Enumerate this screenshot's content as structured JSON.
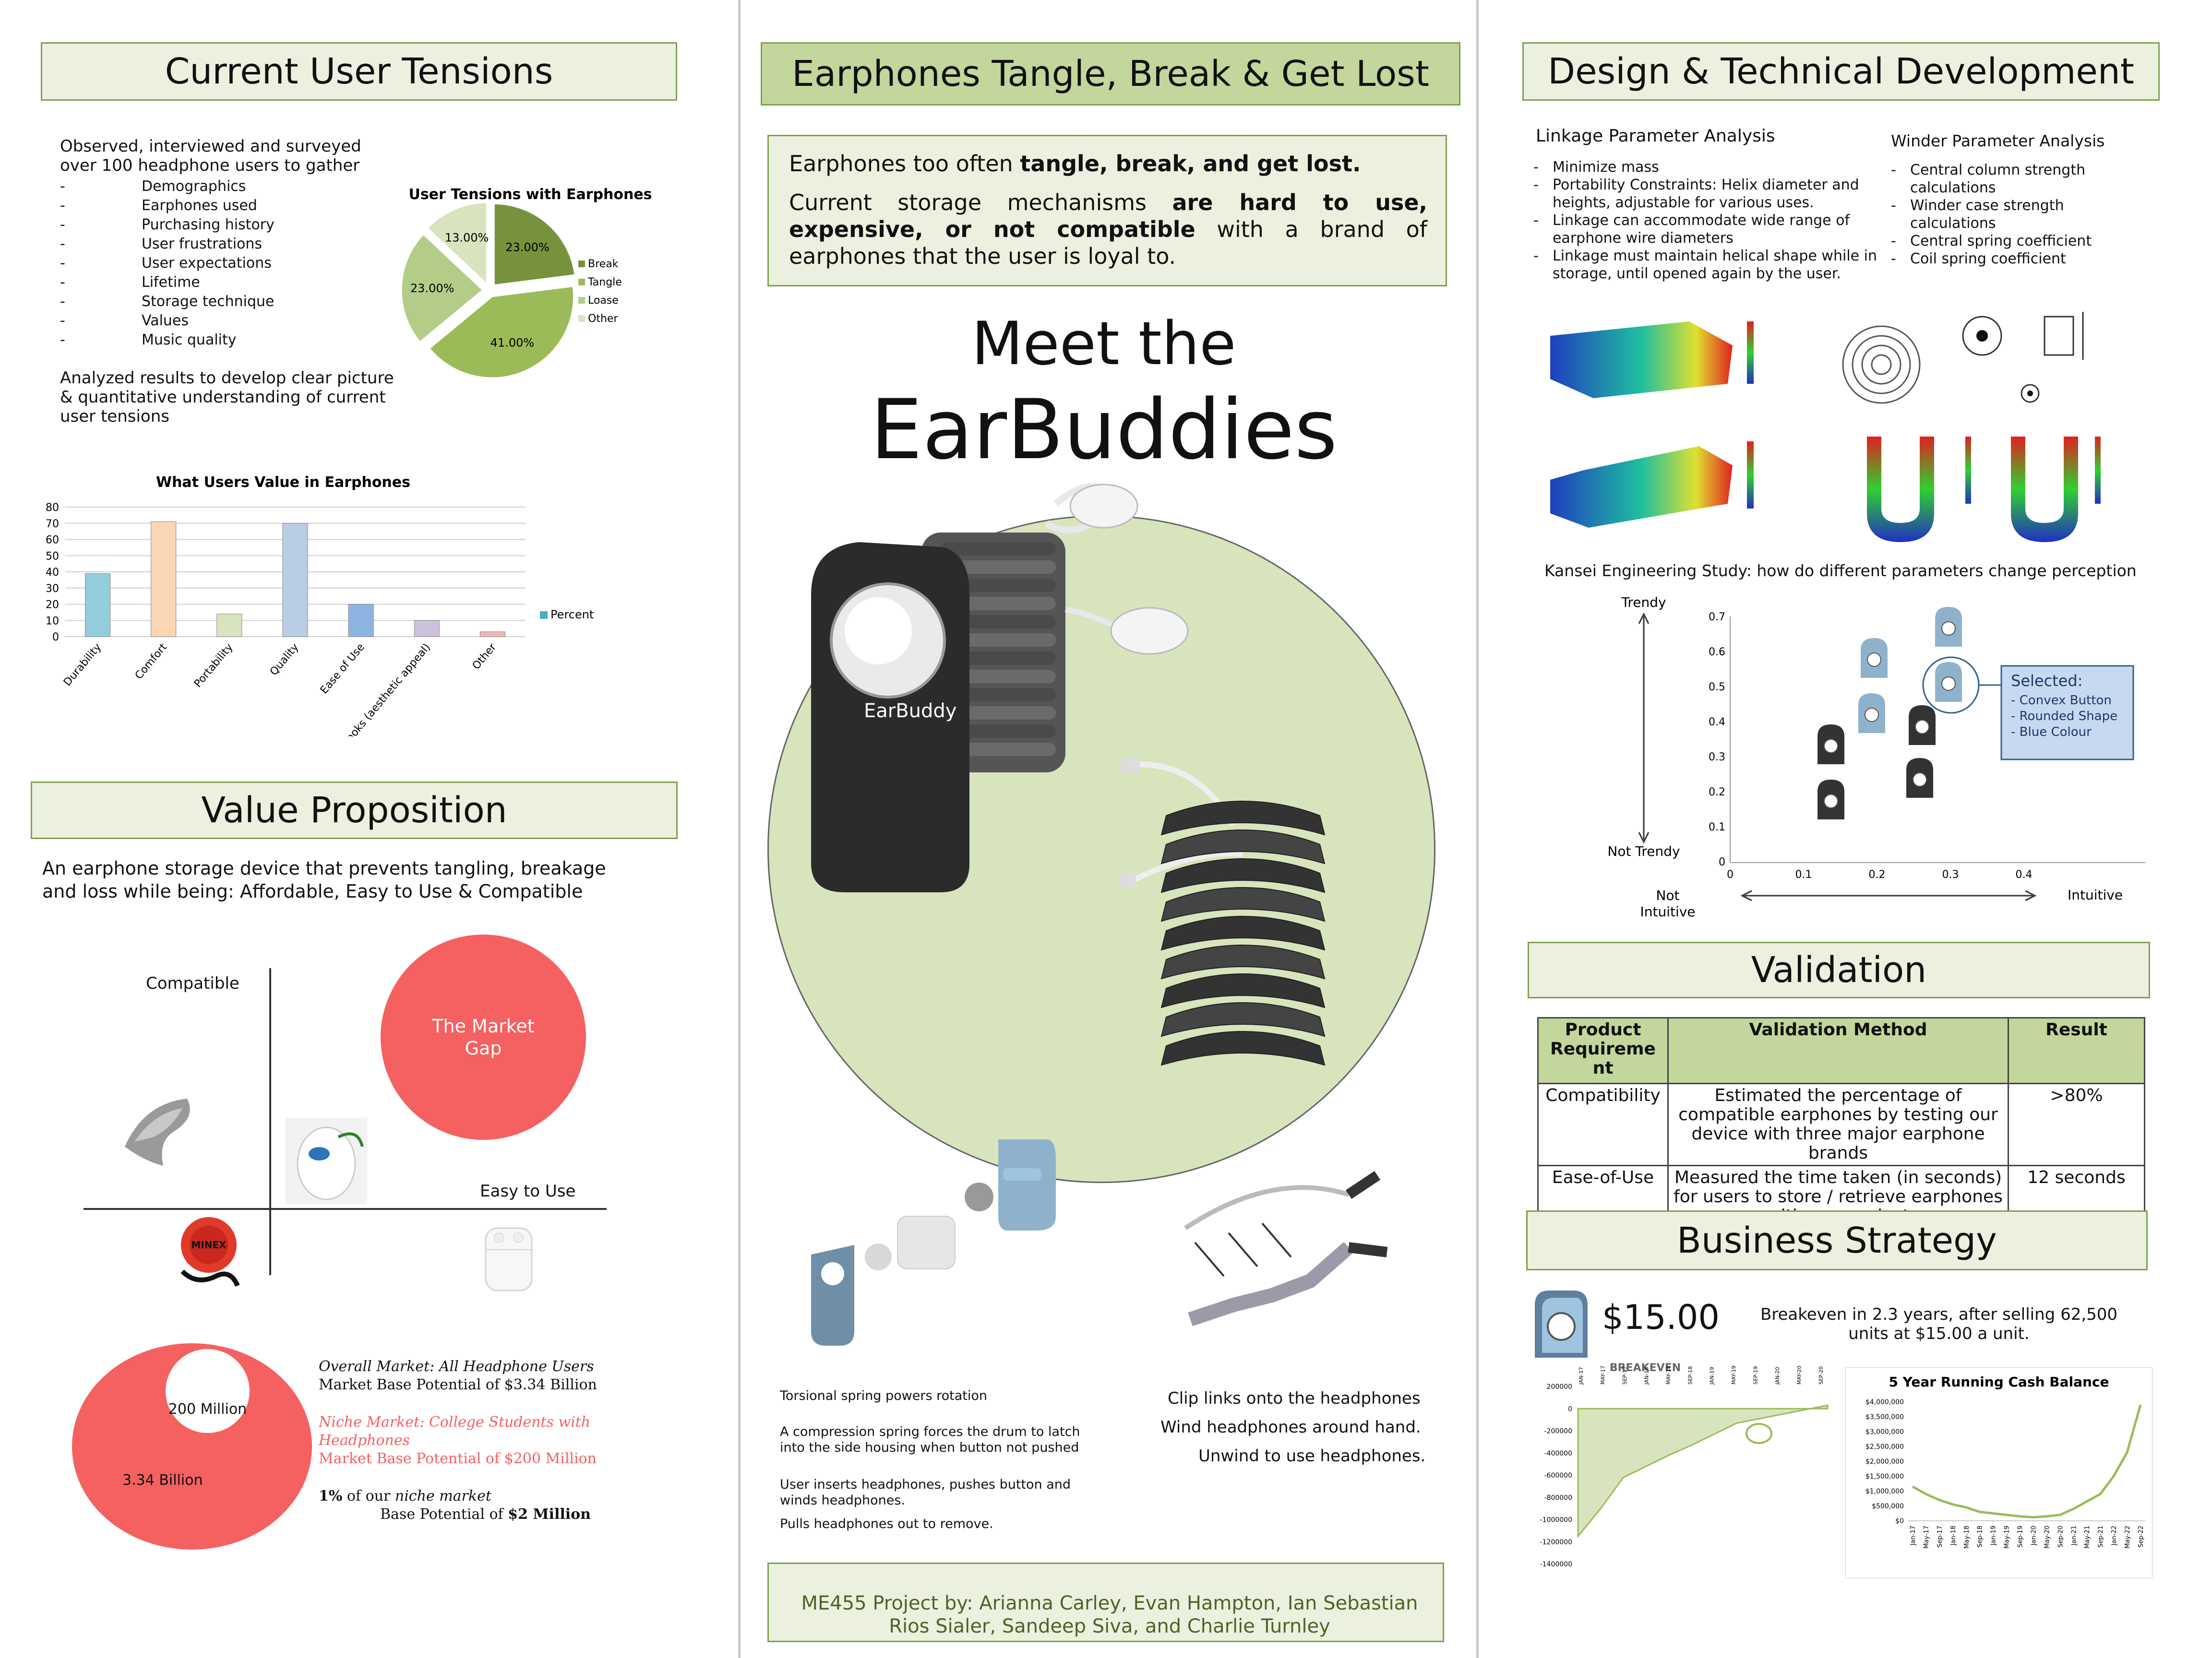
{
  "colors": {
    "accent_green": "#7f9f4f",
    "header_fill": "#ebf1de",
    "header_fill_dark": "#c3d69b",
    "market_red": "#f56060",
    "circle_green": "#d8e4bc"
  },
  "left": {
    "tensions_title": "Current User Tensions",
    "intro": "Observed, interviewed and surveyed over 100 headphone users to gather",
    "gather_items": [
      "Demographics",
      "Earphones used",
      "Purchasing history",
      "User frustrations",
      "User expectations",
      "Lifetime",
      "Storage technique",
      "Values",
      "Music quality"
    ],
    "analyzed": "Analyzed results to develop clear picture & quantitative understanding of current user tensions",
    "value_title": "Value Proposition",
    "value_text": "An earphone storage device that prevents tangling, breakage and loss while being: Affordable, Easy to Use & Compatible",
    "quadrant": {
      "y_label": "Compatible",
      "x_label": "Easy to Use",
      "gap_label_1": "The Market",
      "gap_label_2": "Gap",
      "product_text": "MINEX"
    },
    "market": {
      "big_label": "3.34 Billion",
      "small_label": "200 Million",
      "overall_title": "Overall Market: All Headphone Users",
      "overall_text": "Market Base Potential of  $3.34 Billion",
      "niche_title": "Niche Market: College Students with Headphones",
      "niche_text": "Market Base Potential of $200 Million",
      "pct": "1%",
      "pct_rest": " of our ",
      "niche_word": "niche market",
      "base_text": "Base Potential of ",
      "base_value": "$2 Million"
    }
  },
  "center": {
    "title": "Earphones Tangle, Break & Get Lost",
    "problem_1a": "Earphones too often ",
    "problem_1b": "tangle, break, and get lost.",
    "problem_2a": "Current storage mechanisms ",
    "problem_2b": "are hard to use, expensive, or not compatible",
    "problem_2c": " with a brand of earphones that the user is loyal to.",
    "meet": "Meet the",
    "product_name": "EarBuddies",
    "device_label": "EarBuddy",
    "mech_1": "Torsional spring powers rotation",
    "mech_2": "A compression spring forces the drum to latch into the side housing when button not pushed",
    "mech_3": "User inserts headphones, pushes button and winds headphones.",
    "mech_4": "Pulls headphones out to remove.",
    "clip_1": "Clip links onto the headphones",
    "clip_2": "Wind headphones around hand.",
    "clip_3": "Unwind to use headphones.",
    "credits": "ME455 Project by: Arianna Carley, Evan Hampton, Ian Sebastian Rios Sialer, Sandeep Siva, and Charlie Turnley"
  },
  "right": {
    "title": "Design & Technical Development",
    "linkage_title": "Linkage Parameter Analysis",
    "linkage_items": [
      "Minimize mass",
      "Portability Constraints: Helix diameter and heights, adjustable for various uses.",
      "Linkage can accommodate wide range of earphone wire diameters",
      "Linkage must maintain helical shape while in storage, until opened again by the user."
    ],
    "winder_title": "Winder Parameter Analysis",
    "winder_items": [
      "Central column strength calculations",
      "Winder case strength calculations",
      "Central spring coefficient",
      "Coil spring coefficient"
    ],
    "kansei_title": "Kansei Engineering Study: how do different parameters change perception",
    "kansei": {
      "y_top": "Trendy",
      "y_bottom": "Not Trendy",
      "x_left_1": "Not",
      "x_left_2": "Intuitive",
      "x_right": "Intuitive",
      "selected_title": "Selected:",
      "selected_items": [
        "Convex Button",
        "Rounded Shape",
        "Blue Colour"
      ],
      "y_ticks": [
        "0.7",
        "0.6",
        "0.5",
        "0.4",
        "0.3",
        "0.2",
        "0.1",
        "0"
      ],
      "x_ticks": [
        "0",
        "0.1",
        "0.2",
        "0.3",
        "0.4"
      ]
    },
    "validation_title": "Validation",
    "validation_headers": [
      "Product Requireme nt",
      "Validation Method",
      "Result"
    ],
    "validation_rows": [
      [
        "Compatibility",
        "Estimated the percentage of compatible earphones by testing our device with three major earphone brands",
        ">80%"
      ],
      [
        "Ease-of-Use",
        "Measured the time taken (in seconds) for users to store / retrieve earphones with our product",
        "12 seconds"
      ]
    ],
    "business_title": "Business Strategy",
    "price": "$15.00",
    "breakeven_text": "Breakeven in 2.3 years, after selling  62,500 units at $15.00 a unit."
  },
  "chart_data": [
    {
      "type": "pie",
      "title": "User Tensions with Earphones",
      "categories": [
        "Break",
        "Tangle",
        "Loase",
        "Other"
      ],
      "values": [
        23,
        41,
        23,
        13
      ],
      "labels": [
        "23.00%",
        "41.00%",
        "23.00%",
        "13.00%"
      ],
      "colors": [
        "#76923c",
        "#9bbb59",
        "#b3cd89",
        "#d7e4bd"
      ],
      "legend": "right"
    },
    {
      "type": "bar",
      "title": "What Users Value in Earphones",
      "categories": [
        "Durability",
        "Comfort",
        "Portability",
        "Quality",
        "Ease of Use",
        "Looks (aesthetic appeal)",
        "Other"
      ],
      "series": [
        {
          "name": "Percent",
          "values": [
            39,
            71,
            14,
            70,
            20,
            10,
            3
          ]
        }
      ],
      "colors": [
        "#93cddd",
        "#fcd5b5",
        "#d7e4bd",
        "#b9cde5",
        "#8eb4e3",
        "#ccc1da",
        "#f2b7b7"
      ],
      "ylim": [
        0,
        80
      ],
      "y_ticks": [
        "0",
        "10",
        "20",
        "30",
        "40",
        "50",
        "60",
        "70",
        "80"
      ],
      "legend": "right"
    },
    {
      "type": "area",
      "title": "BREAKEVEN",
      "categories": [
        "JAN-17",
        "MAY-17",
        "SEP-17",
        "JAN-18",
        "MAY-18",
        "SEP-18",
        "JAN-19",
        "MAY-19",
        "SEP-19",
        "JAN-20",
        "MAY-20",
        "SEP-20"
      ],
      "values": [
        -1150000,
        -900000,
        -620000,
        -520000,
        -420000,
        -330000,
        -230000,
        -130000,
        -90000,
        -50000,
        -10000,
        30000
      ],
      "y_ticks": [
        "200000",
        "0",
        "-200000",
        "-400000",
        "-600000",
        "-800000",
        "-1000000",
        "-1200000",
        "-1400000"
      ],
      "ylim": [
        -1400000,
        200000
      ]
    },
    {
      "type": "line",
      "title": "5 Year Running Cash Balance",
      "categories": [
        "Jan-17",
        "May-17",
        "Sep-17",
        "Jan-18",
        "May-18",
        "Sep-18",
        "Jan-19",
        "May-19",
        "Sep-19",
        "Jan-20",
        "May-20",
        "Sep-20",
        "Jan-21",
        "May-21",
        "Sep-21",
        "Jan-22",
        "May-22",
        "Sep-22"
      ],
      "values": [
        1150000,
        900000,
        700000,
        550000,
        450000,
        300000,
        250000,
        200000,
        150000,
        120000,
        150000,
        200000,
        400000,
        650000,
        900000,
        1500000,
        2300000,
        3900000
      ],
      "y_ticks": [
        "$4,000,000",
        "$3,500,000",
        "$3,000,000",
        "$2,500,000",
        "$2,000,000",
        "$1,500,000",
        "$1,000,000",
        "$500,000",
        "$0"
      ],
      "ylim": [
        0,
        4000000
      ]
    }
  ]
}
